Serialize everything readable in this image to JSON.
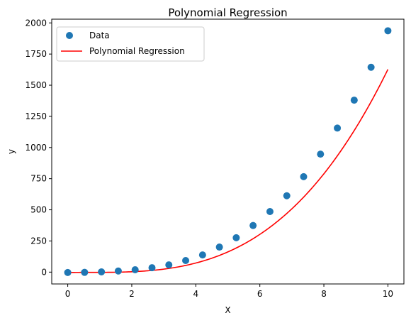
{
  "chart_data": {
    "type": "scatter",
    "title": "Polynomial Regression",
    "xlabel": "X",
    "ylabel": "y",
    "xlim": [
      -0.5,
      10.5
    ],
    "ylim": [
      -95,
      2030
    ],
    "xticks": [
      0,
      2,
      4,
      6,
      8,
      10
    ],
    "yticks": [
      0,
      250,
      500,
      750,
      1000,
      1250,
      1500,
      1750,
      2000
    ],
    "grid": false,
    "legend": {
      "placement": "top-left",
      "entries": [
        {
          "label": "Data",
          "marker": "circle",
          "color": "#1f77b4"
        },
        {
          "label": "Polynomial Regression",
          "marker": "line",
          "color": "#ff0000"
        }
      ]
    },
    "series": [
      {
        "name": "Data",
        "kind": "scatter",
        "color": "#1f77b4",
        "x": [
          0,
          0.526,
          1.053,
          1.579,
          2.105,
          2.632,
          3.158,
          3.684,
          4.211,
          4.737,
          5.263,
          5.789,
          6.316,
          6.842,
          7.368,
          7.895,
          8.421,
          8.947,
          9.474,
          10
        ],
        "y": [
          -3,
          -2,
          2,
          9,
          19,
          35,
          58,
          93,
          138,
          201,
          276,
          374,
          486,
          613,
          766,
          947,
          1156,
          1380,
          1644,
          1937
        ]
      },
      {
        "name": "Polynomial Regression",
        "kind": "line",
        "color": "#ff0000",
        "model": "y = 2x^3 - 4x^2 + 3x - 3",
        "x_range": [
          0,
          10
        ]
      }
    ]
  }
}
